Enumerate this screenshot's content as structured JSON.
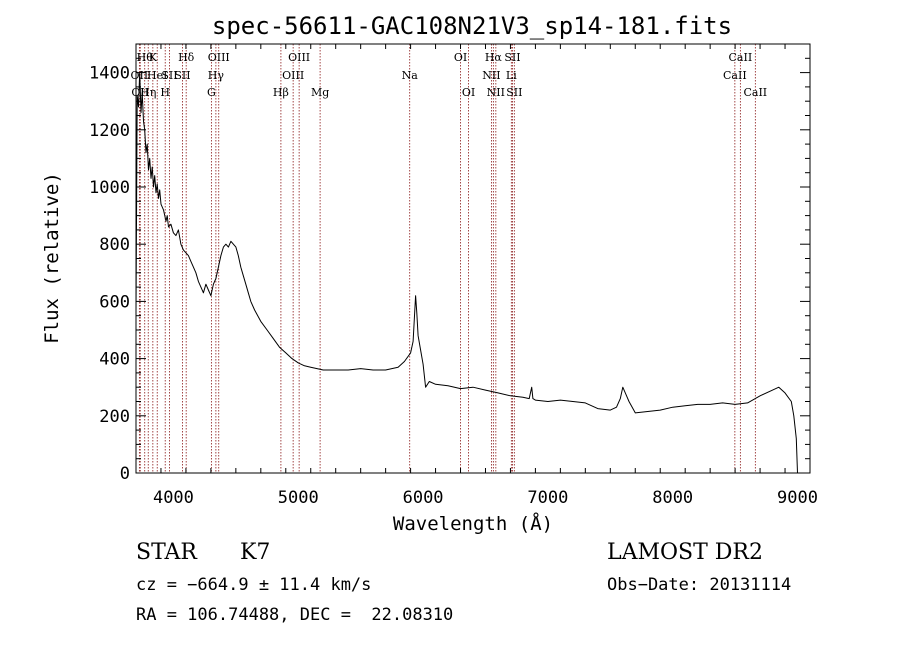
{
  "chart_data": {
    "type": "line",
    "title": "spec-56611-GAC108N21V3_sp14-181.fits",
    "xlabel": "Wavelength (Å)",
    "ylabel": "Flux (relative)",
    "xlim": [
      3700,
      9100
    ],
    "ylim": [
      0,
      1500
    ],
    "xticks": [
      {
        "value": 4000,
        "label": "4000"
      },
      {
        "value": 5000,
        "label": "5000"
      },
      {
        "value": 6000,
        "label": "6000"
      },
      {
        "value": 7000,
        "label": "7000"
      },
      {
        "value": 8000,
        "label": "8000"
      },
      {
        "value": 9000,
        "label": "9000"
      }
    ],
    "yticks": [
      {
        "value": 0,
        "label": "0"
      },
      {
        "value": 200,
        "label": "200"
      },
      {
        "value": 400,
        "label": "400"
      },
      {
        "value": 600,
        "label": "600"
      },
      {
        "value": 800,
        "label": "800"
      },
      {
        "value": 1000,
        "label": "1000"
      },
      {
        "value": 1200,
        "label": "1200"
      },
      {
        "value": 1400,
        "label": "1400"
      }
    ],
    "line_color": "#000000",
    "marker_line_color": "#8b1a1a",
    "series": [
      {
        "values": [
          [
            3700,
            560
          ],
          [
            3710,
            1320
          ],
          [
            3720,
            1280
          ],
          [
            3730,
            1400
          ],
          [
            3740,
            1260
          ],
          [
            3750,
            1330
          ],
          [
            3760,
            1230
          ],
          [
            3770,
            1200
          ],
          [
            3780,
            1120
          ],
          [
            3790,
            1150
          ],
          [
            3800,
            1060
          ],
          [
            3810,
            1100
          ],
          [
            3820,
            1030
          ],
          [
            3830,
            1070
          ],
          [
            3840,
            1000
          ],
          [
            3850,
            1040
          ],
          [
            3860,
            980
          ],
          [
            3870,
            1010
          ],
          [
            3880,
            960
          ],
          [
            3890,
            990
          ],
          [
            3900,
            940
          ],
          [
            3920,
            920
          ],
          [
            3940,
            880
          ],
          [
            3950,
            900
          ],
          [
            3960,
            860
          ],
          [
            3980,
            870
          ],
          [
            4000,
            840
          ],
          [
            4020,
            830
          ],
          [
            4040,
            850
          ],
          [
            4060,
            800
          ],
          [
            4080,
            780
          ],
          [
            4100,
            770
          ],
          [
            4120,
            760
          ],
          [
            4140,
            740
          ],
          [
            4160,
            720
          ],
          [
            4180,
            700
          ],
          [
            4200,
            670
          ],
          [
            4220,
            650
          ],
          [
            4240,
            630
          ],
          [
            4260,
            660
          ],
          [
            4280,
            640
          ],
          [
            4300,
            620
          ],
          [
            4320,
            660
          ],
          [
            4340,
            680
          ],
          [
            4360,
            720
          ],
          [
            4380,
            760
          ],
          [
            4400,
            790
          ],
          [
            4420,
            800
          ],
          [
            4440,
            790
          ],
          [
            4460,
            810
          ],
          [
            4480,
            800
          ],
          [
            4500,
            790
          ],
          [
            4520,
            760
          ],
          [
            4540,
            720
          ],
          [
            4560,
            690
          ],
          [
            4580,
            660
          ],
          [
            4600,
            630
          ],
          [
            4620,
            600
          ],
          [
            4650,
            570
          ],
          [
            4700,
            530
          ],
          [
            4750,
            500
          ],
          [
            4800,
            470
          ],
          [
            4850,
            440
          ],
          [
            4900,
            420
          ],
          [
            4950,
            400
          ],
          [
            5000,
            385
          ],
          [
            5050,
            375
          ],
          [
            5100,
            370
          ],
          [
            5150,
            365
          ],
          [
            5200,
            360
          ],
          [
            5300,
            360
          ],
          [
            5400,
            360
          ],
          [
            5500,
            365
          ],
          [
            5600,
            360
          ],
          [
            5700,
            360
          ],
          [
            5800,
            370
          ],
          [
            5850,
            390
          ],
          [
            5900,
            420
          ],
          [
            5920,
            460
          ],
          [
            5940,
            620
          ],
          [
            5950,
            560
          ],
          [
            5960,
            480
          ],
          [
            5980,
            430
          ],
          [
            6000,
            380
          ],
          [
            6020,
            300
          ],
          [
            6050,
            320
          ],
          [
            6100,
            310
          ],
          [
            6200,
            305
          ],
          [
            6300,
            295
          ],
          [
            6400,
            300
          ],
          [
            6500,
            290
          ],
          [
            6600,
            280
          ],
          [
            6700,
            270
          ],
          [
            6800,
            265
          ],
          [
            6850,
            260
          ],
          [
            6870,
            300
          ],
          [
            6880,
            260
          ],
          [
            6900,
            255
          ],
          [
            7000,
            250
          ],
          [
            7100,
            255
          ],
          [
            7200,
            250
          ],
          [
            7300,
            245
          ],
          [
            7400,
            225
          ],
          [
            7500,
            220
          ],
          [
            7550,
            230
          ],
          [
            7580,
            260
          ],
          [
            7600,
            300
          ],
          [
            7620,
            280
          ],
          [
            7650,
            250
          ],
          [
            7700,
            210
          ],
          [
            7800,
            215
          ],
          [
            7900,
            220
          ],
          [
            8000,
            230
          ],
          [
            8100,
            235
          ],
          [
            8200,
            240
          ],
          [
            8300,
            240
          ],
          [
            8400,
            245
          ],
          [
            8500,
            240
          ],
          [
            8600,
            245
          ],
          [
            8700,
            270
          ],
          [
            8800,
            290
          ],
          [
            8850,
            300
          ],
          [
            8900,
            280
          ],
          [
            8950,
            250
          ],
          [
            8970,
            200
          ],
          [
            8990,
            120
          ],
          [
            9000,
            0
          ]
        ]
      }
    ],
    "line_markers": [
      {
        "x": 3770,
        "label": "Hθ",
        "row": 0
      },
      {
        "x": 3727,
        "label": "OII",
        "row": 1
      },
      {
        "x": 3734,
        "label": "OII",
        "row": 2
      },
      {
        "x": 3798,
        "label": "Hη",
        "row": 2
      },
      {
        "x": 3835,
        "label": "K",
        "row": 0
      },
      {
        "x": 3870,
        "label": "HeI",
        "row": 1
      },
      {
        "x": 3934,
        "label": "H",
        "row": 2
      },
      {
        "x": 3968,
        "label": "SII",
        "row": 1
      },
      {
        "x": 4102,
        "label": "Hδ",
        "row": 0
      },
      {
        "x": 4072,
        "label": "SII",
        "row": 1
      },
      {
        "x": 4304,
        "label": "G",
        "row": 2
      },
      {
        "x": 4340,
        "label": "Hγ",
        "row": 1
      },
      {
        "x": 4363,
        "label": "OIII",
        "row": 0
      },
      {
        "x": 4861,
        "label": "Hβ",
        "row": 2
      },
      {
        "x": 4959,
        "label": "OIII",
        "row": 1
      },
      {
        "x": 5007,
        "label": "OIII",
        "row": 0
      },
      {
        "x": 5175,
        "label": "Mg",
        "row": 2
      },
      {
        "x": 5893,
        "label": "Na",
        "row": 1
      },
      {
        "x": 6300,
        "label": "OI",
        "row": 0
      },
      {
        "x": 6364,
        "label": "OI",
        "row": 2
      },
      {
        "x": 6548,
        "label": "NII",
        "row": 1
      },
      {
        "x": 6563,
        "label": "Hα",
        "row": 0
      },
      {
        "x": 6583,
        "label": "NII",
        "row": 2
      },
      {
        "x": 6716,
        "label": "SII",
        "row": 0
      },
      {
        "x": 6707,
        "label": "Li",
        "row": 1
      },
      {
        "x": 6731,
        "label": "SII",
        "row": 2
      },
      {
        "x": 8498,
        "label": "CaII",
        "row": 1
      },
      {
        "x": 8542,
        "label": "CaII",
        "row": 0
      },
      {
        "x": 8662,
        "label": "CaII",
        "row": 2
      }
    ]
  },
  "footer": {
    "object_class": "STAR",
    "subclass": "K7",
    "survey": "LAMOST DR2",
    "redshift": "cz = −664.9 ± 11.4 km/s",
    "obs_date": "Obs−Date: 20131114",
    "coords": "RA = 106.74488, DEC =  22.08310"
  }
}
